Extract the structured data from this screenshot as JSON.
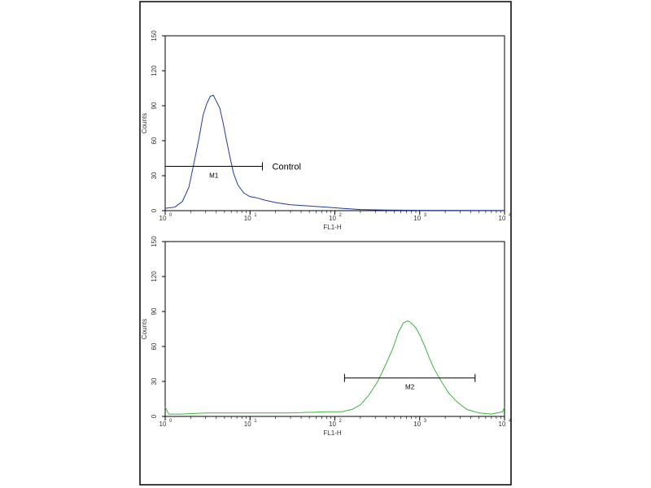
{
  "chart_data": [
    {
      "type": "line",
      "xlabel": "FL1-H",
      "ylabel": "Counts",
      "xscale": "log",
      "xlim": [
        1,
        10000
      ],
      "ylim": [
        0,
        150
      ],
      "xticks": [
        "10",
        "10",
        "10",
        "10",
        "10"
      ],
      "xtick_exponents": [
        "0",
        "1",
        "2",
        "3",
        "4"
      ],
      "yticks": [
        "0",
        "30",
        "60",
        "90",
        "120",
        "150"
      ],
      "series": [
        {
          "color": "#1f3c9e",
          "x": [
            1,
            1.3,
            1.6,
            1.9,
            2.2,
            2.5,
            2.8,
            3.1,
            3.4,
            3.7,
            4.0,
            4.4,
            4.8,
            5.3,
            5.8,
            6.4,
            7.2,
            8.5,
            10,
            12,
            15,
            20,
            30,
            50,
            80,
            120,
            200,
            400,
            1000,
            10000
          ],
          "y": [
            2,
            3,
            8,
            20,
            42,
            62,
            82,
            92,
            98,
            99,
            94,
            88,
            76,
            60,
            46,
            32,
            22,
            15,
            12,
            11,
            9,
            7,
            5,
            4,
            3,
            2,
            1,
            0.5,
            0.3,
            0.2
          ]
        }
      ],
      "annotations": [
        {
          "type": "marker",
          "label": "M1",
          "x_range": [
            1,
            14
          ],
          "y": 38
        },
        {
          "type": "text",
          "text": "Control",
          "x": 16,
          "y": 38
        }
      ]
    },
    {
      "type": "line",
      "xlabel": "FL1-H",
      "ylabel": "Counts",
      "xscale": "log",
      "xlim": [
        1,
        10000
      ],
      "ylim": [
        0,
        150
      ],
      "xticks": [
        "10",
        "10",
        "10",
        "10",
        "10"
      ],
      "xtick_exponents": [
        "0",
        "1",
        "2",
        "3",
        "4"
      ],
      "yticks": [
        "0",
        "30",
        "60",
        "90",
        "120",
        "150"
      ],
      "series": [
        {
          "color": "#3db53d",
          "x": [
            1,
            1.1,
            1.5,
            3,
            10,
            30,
            80,
            120,
            160,
            200,
            250,
            320,
            400,
            480,
            560,
            640,
            720,
            800,
            900,
            1000,
            1150,
            1300,
            1500,
            1800,
            2200,
            2800,
            3600,
            5000,
            7000,
            9500,
            10000
          ],
          "y": [
            8,
            2,
            2,
            3,
            3,
            3,
            4,
            4,
            6,
            10,
            18,
            30,
            45,
            58,
            72,
            80,
            82,
            80,
            76,
            70,
            60,
            50,
            40,
            30,
            20,
            12,
            6,
            3,
            2,
            4,
            8
          ]
        }
      ],
      "annotations": [
        {
          "type": "marker",
          "label": "M2",
          "x_range": [
            130,
            4500
          ],
          "y": 33
        }
      ]
    }
  ]
}
